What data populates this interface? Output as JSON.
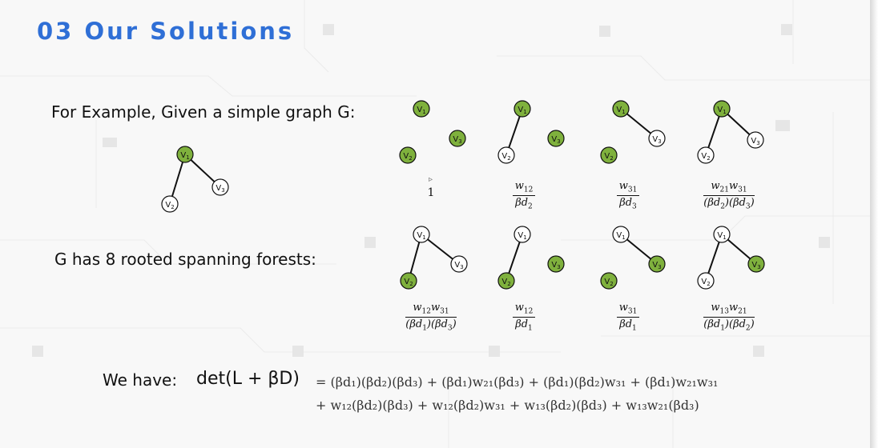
{
  "title": "03 Our Solutions",
  "example_label": "For Example, Given a simple graph G:",
  "forests_label": "G has 8 rooted spanning forests:",
  "have_label": "We have:",
  "determinant": "det(L + βD)",
  "equation_line1": "= (βd₁)(βd₂)(βd₃) + (βd₁)w₂₁(βd₃) + (βd₁)(βd₂)w₃₁ + (βd₁)w₂₁w₃₁",
  "equation_line2": "+ w₁₂(βd₂)(βd₃) + w₁₂(βd₂)w₃₁ + w₁₃(βd₂)(βd₃) + w₁₃w₂₁(βd₃)",
  "node_labels": [
    "V1",
    "V2",
    "V3"
  ],
  "colors": {
    "title": "#2f6fd6",
    "root_fill": "#7fb13d",
    "node_fill": "#ffffff",
    "stroke": "#111111"
  },
  "forests": [
    {
      "roots": [
        "V1",
        "V2",
        "V3"
      ],
      "edges": [],
      "weight": {
        "one": "1"
      }
    },
    {
      "roots": [
        "V1",
        "V3"
      ],
      "edges": [
        [
          "V1",
          "V2"
        ]
      ],
      "weight": {
        "num": "w12",
        "den": "βd2"
      }
    },
    {
      "roots": [
        "V1",
        "V2"
      ],
      "edges": [
        [
          "V1",
          "V3"
        ]
      ],
      "weight": {
        "num": "w31",
        "den": "βd3"
      }
    },
    {
      "roots": [
        "V1"
      ],
      "edges": [
        [
          "V1",
          "V2"
        ],
        [
          "V1",
          "V3"
        ]
      ],
      "weight": {
        "num": "w21w31",
        "den": "(βd2)(βd3)"
      }
    },
    {
      "roots": [
        "V2"
      ],
      "edges": [
        [
          "V1",
          "V2"
        ],
        [
          "V1",
          "V3"
        ]
      ],
      "weight": {
        "num": "w12w31",
        "den": "(βd1)(βd3)"
      }
    },
    {
      "roots": [
        "V2",
        "V3"
      ],
      "edges": [
        [
          "V1",
          "V2"
        ]
      ],
      "weight": {
        "num": "w12",
        "den": "βd1"
      }
    },
    {
      "roots": [
        "V2",
        "V3"
      ],
      "edges": [
        [
          "V1",
          "V3"
        ]
      ],
      "weight": {
        "num": "w31",
        "den": "βd1"
      }
    },
    {
      "roots": [
        "V3"
      ],
      "edges": [
        [
          "V1",
          "V2"
        ],
        [
          "V1",
          "V3"
        ]
      ],
      "weight": {
        "num": "w13w21",
        "den": "(βd1)(βd2)"
      }
    }
  ]
}
